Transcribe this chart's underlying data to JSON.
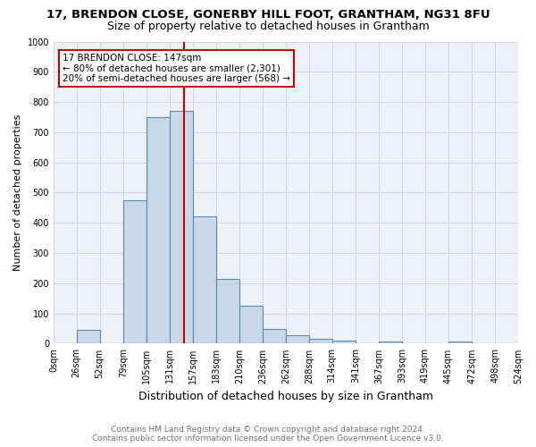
{
  "title_line1": "17, BRENDON CLOSE, GONERBY HILL FOOT, GRANTHAM, NG31 8FU",
  "title_line2": "Size of property relative to detached houses in Grantham",
  "xlabel": "Distribution of detached houses by size in Grantham",
  "ylabel": "Number of detached properties",
  "bin_edges": [
    0,
    26,
    52,
    79,
    105,
    131,
    157,
    183,
    210,
    236,
    262,
    288,
    314,
    341,
    367,
    393,
    419,
    445,
    472,
    498,
    524
  ],
  "bar_heights": [
    0,
    45,
    0,
    475,
    750,
    770,
    420,
    215,
    125,
    50,
    28,
    15,
    10,
    0,
    8,
    0,
    0,
    8,
    0,
    0
  ],
  "bar_color": "#c8d8e8",
  "bar_edge_color": "#5a8ab0",
  "bar_linewidth": 0.8,
  "vline_x": 147,
  "vline_color": "#cc0000",
  "vline_linewidth": 1.5,
  "annotation_title": "17 BRENDON CLOSE: 147sqm",
  "annotation_line1": "← 80% of detached houses are smaller (2,301)",
  "annotation_line2": "20% of semi-detached houses are larger (568) →",
  "annotation_box_color": "#cc0000",
  "annotation_text_color": "#000000",
  "ylim": [
    0,
    1000
  ],
  "yticks": [
    0,
    100,
    200,
    300,
    400,
    500,
    600,
    700,
    800,
    900,
    1000
  ],
  "grid_color": "#d0d8e8",
  "background_color": "#eef2f7",
  "footnote_line1": "Contains HM Land Registry data © Crown copyright and database right 2024.",
  "footnote_line2": "Contains public sector information licensed under the Open Government Licence v3.0.",
  "footnote_color": "#707070",
  "title1_fontsize": 9.5,
  "title2_fontsize": 9,
  "xlabel_fontsize": 9,
  "ylabel_fontsize": 8,
  "tick_fontsize": 7,
  "annotation_fontsize": 7.5,
  "footnote_fontsize": 6.5
}
